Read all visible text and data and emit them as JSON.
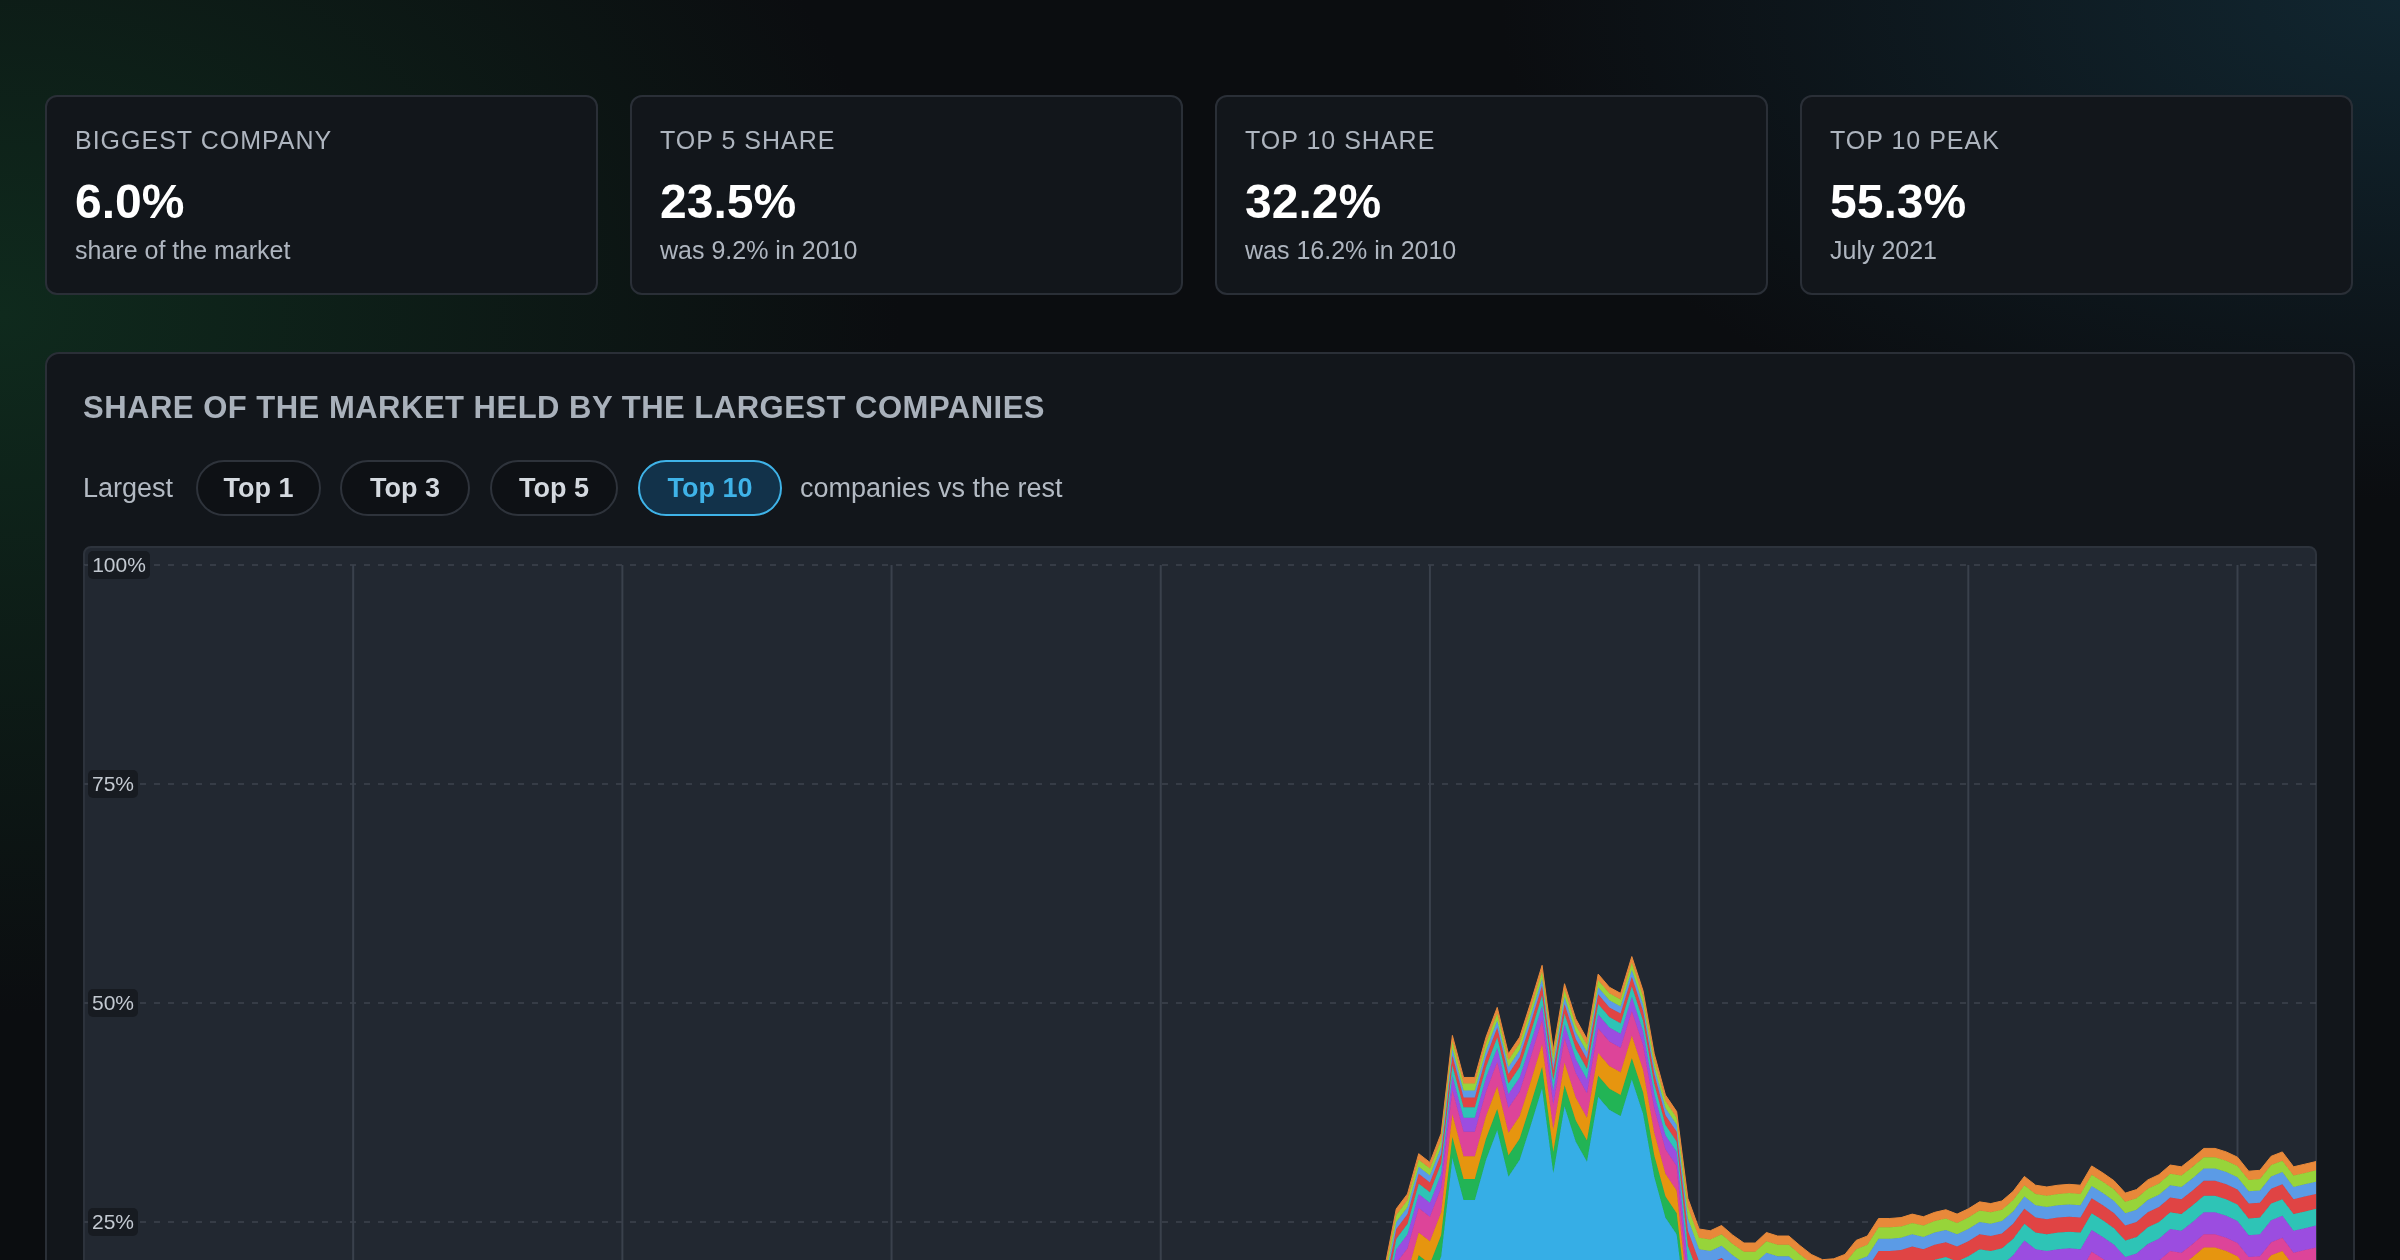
{
  "chart_data": {
    "type": "area",
    "stacked": true,
    "grid": true,
    "title": "SHARE OF THE MARKET HELD BY THE LARGEST COMPANIES",
    "annotations": [
      "BIGGEST COMPANY",
      "6.0%",
      "share of the market",
      "TOP 5 SHARE",
      "23.5%",
      "was 9.2% in 2010",
      "TOP 10 SHARE",
      "32.2%",
      "was 16.2% in 2010",
      "TOP 10 PEAK",
      "55.3%",
      "July 2021",
      "Largest",
      "Top 1",
      "Top 3",
      "Top 5",
      "Top 10",
      "companies vs the rest"
    ],
    "ylim": [
      0,
      100
    ],
    "yticks": [
      {
        "value": 25,
        "label": "25%"
      },
      {
        "value": 50,
        "label": "50%"
      },
      {
        "value": 75,
        "label": "75%"
      },
      {
        "value": 100,
        "label": "100%"
      }
    ],
    "categories": [
      null,
      null,
      null,
      null,
      null,
      null,
      null,
      null,
      null,
      null,
      null,
      null,
      null,
      null,
      null,
      null,
      null,
      null,
      null,
      null,
      null,
      null,
      null,
      null,
      null,
      null,
      null,
      null,
      null,
      null,
      null,
      null,
      null,
      null,
      null,
      null,
      null,
      null,
      null,
      null,
      null,
      null,
      null,
      null,
      null,
      null,
      null,
      null,
      null,
      null,
      null,
      null,
      null,
      null,
      null,
      null,
      null,
      null,
      null,
      null,
      null,
      null,
      null,
      null,
      null,
      null,
      null,
      null,
      null,
      null,
      null,
      null,
      null,
      null,
      null,
      null,
      null,
      null,
      null,
      null,
      null,
      null,
      null,
      null,
      null,
      null,
      null,
      null,
      null,
      null,
      null,
      null,
      null,
      null,
      null,
      null,
      null,
      null,
      null,
      null,
      null,
      null,
      null,
      null,
      null,
      null,
      null,
      null,
      null,
      null,
      null,
      null,
      null,
      null,
      null,
      null,
      null,
      null,
      null,
      null,
      null,
      null,
      null,
      null,
      null,
      null,
      null,
      null,
      null,
      null,
      null,
      null,
      null,
      null,
      null,
      null,
      null,
      null,
      null,
      null,
      null,
      null,
      null,
      null,
      null,
      null,
      null,
      null,
      null,
      null,
      null,
      null,
      null,
      null,
      null,
      null,
      null,
      null,
      null,
      null,
      null,
      null,
      null,
      null,
      null,
      null,
      null,
      null,
      null,
      null,
      null,
      null,
      null,
      null,
      null,
      null,
      null,
      null,
      null,
      null,
      null,
      null,
      null,
      null,
      null,
      null,
      null,
      null,
      null,
      null,
      null,
      null,
      null,
      null,
      null,
      null,
      null,
      null,
      null,
      null
    ],
    "series": [
      {
        "color": "#36aee6",
        "values": [
          null,
          null,
          null,
          null,
          null,
          null,
          null,
          null,
          null,
          null,
          null,
          null,
          null,
          null,
          null,
          null,
          null,
          null,
          null,
          null,
          null,
          null,
          null,
          null,
          null,
          null,
          null,
          null,
          null,
          null,
          null,
          null,
          null,
          null,
          null,
          null,
          null,
          null,
          null,
          null,
          null,
          null,
          null,
          null,
          null,
          null,
          null,
          null,
          null,
          null,
          null,
          null,
          null,
          null,
          null,
          null,
          null,
          null,
          null,
          null,
          null,
          null,
          null,
          null,
          null,
          null,
          null,
          null,
          null,
          null,
          null,
          null,
          null,
          null,
          null,
          null,
          null,
          null,
          null,
          null,
          null,
          null,
          null,
          null,
          null,
          null,
          null,
          null,
          null,
          null,
          null,
          null,
          null,
          null,
          null,
          null,
          null,
          null,
          null,
          null,
          null,
          null,
          null,
          null,
          null,
          null,
          null,
          null,
          null,
          null,
          null,
          null,
          null,
          null,
          null,
          null,
          6,
          12.5,
          14.2,
          18.8,
          17.8,
          21.1,
          32.3,
          27.5,
          27.5,
          32.1,
          35.5,
          30.2,
          32.1,
          36.1,
          40.3,
          30.6,
          38.2,
          34.2,
          31.9,
          39.3,
          37.8,
          37.1,
          41.3,
          37.4,
          30.2,
          25.5,
          23.6,
          13.4,
          9.9,
          9.7,
          10.3,
          9.2,
          8.3,
          8.3,
          9.5,
          9.1,
          9.1,
          8.0,
          7.0,
          6.4,
          6.5,
          7.0,
          8.6,
          9.1,
          11.1,
          11.1,
          11.2,
          11.6,
          11.3,
          11.8,
          12.1,
          11.6,
          12.2,
          13.0,
          12.8,
          13.1,
          14.2,
          15.9,
          14.9,
          14.7,
          14.9,
          15.0,
          14.9,
          17.1,
          16.3,
          15.4,
          14.0,
          14.4,
          15.5,
          16.1,
          17.2,
          17.0,
          18.0,
          19.1,
          19.1,
          18.7,
          18.1,
          16.5,
          16.6,
          18.2,
          18.7,
          17.0,
          17.3,
          17.6
        ]
      },
      {
        "color": "#22b455",
        "values": [
          null,
          null,
          null,
          null,
          null,
          null,
          null,
          null,
          null,
          null,
          null,
          null,
          null,
          null,
          null,
          null,
          null,
          null,
          null,
          null,
          null,
          null,
          null,
          null,
          null,
          null,
          null,
          null,
          null,
          null,
          null,
          null,
          null,
          null,
          null,
          null,
          null,
          null,
          null,
          null,
          null,
          null,
          null,
          null,
          null,
          null,
          null,
          null,
          null,
          null,
          null,
          null,
          null,
          null,
          null,
          null,
          null,
          null,
          null,
          null,
          null,
          null,
          null,
          null,
          null,
          null,
          null,
          null,
          null,
          null,
          null,
          null,
          null,
          null,
          null,
          null,
          null,
          null,
          null,
          null,
          null,
          null,
          null,
          null,
          null,
          null,
          null,
          null,
          null,
          null,
          null,
          null,
          null,
          null,
          null,
          null,
          null,
          null,
          null,
          null,
          null,
          null,
          null,
          null,
          null,
          null,
          null,
          null,
          null,
          null,
          null,
          null,
          null,
          null,
          null,
          null,
          2.4,
          2.4,
          2.4,
          2.4,
          2.4,
          2.4,
          2.4,
          2.4,
          2.4,
          2.4,
          2.4,
          2.4,
          2.4,
          2.4,
          2.4,
          2.4,
          2.4,
          2.4,
          2.4,
          2.4,
          2.4,
          2.4,
          2.4,
          2.4,
          2.4,
          2.4,
          2.4,
          1.5,
          1.5,
          1.5,
          1.5,
          1.5,
          1.5,
          1.5,
          1.5,
          1.5,
          1.5,
          1.5,
          1.5,
          1.5,
          1.5,
          1.5,
          1.5,
          1.5,
          1.5,
          1.5,
          1.5,
          1.5,
          1.5,
          1.5,
          1.5,
          1.5,
          1.5,
          1.5,
          1.5,
          1.5,
          1.5,
          1.5,
          1.5,
          1.5,
          1.5,
          1.5,
          1.5,
          1.5,
          1.5,
          1.5,
          1.5,
          1.5,
          1.5,
          1.5,
          1.5,
          1.5,
          1.5,
          1.5,
          1.5,
          1.5,
          1.5,
          1.5,
          1.5,
          1.5,
          1.5,
          1.5,
          1.5,
          1.5
        ]
      },
      {
        "color": "#e6950f",
        "values": [
          null,
          null,
          null,
          null,
          null,
          null,
          null,
          null,
          null,
          null,
          null,
          null,
          null,
          null,
          null,
          null,
          null,
          null,
          null,
          null,
          null,
          null,
          null,
          null,
          null,
          null,
          null,
          null,
          null,
          null,
          null,
          null,
          null,
          null,
          null,
          null,
          null,
          null,
          null,
          null,
          null,
          null,
          null,
          null,
          null,
          null,
          null,
          null,
          null,
          null,
          null,
          null,
          null,
          null,
          null,
          null,
          null,
          null,
          null,
          null,
          null,
          null,
          null,
          null,
          null,
          null,
          null,
          null,
          null,
          null,
          null,
          null,
          null,
          null,
          null,
          null,
          null,
          null,
          null,
          null,
          null,
          null,
          null,
          null,
          null,
          null,
          null,
          null,
          null,
          null,
          null,
          null,
          null,
          null,
          null,
          null,
          null,
          null,
          null,
          null,
          null,
          null,
          null,
          null,
          null,
          null,
          null,
          null,
          null,
          null,
          null,
          null,
          null,
          null,
          null,
          null,
          2.6,
          2.6,
          2.6,
          2.6,
          2.6,
          2.6,
          2.6,
          2.6,
          2.6,
          2.6,
          2.6,
          2.6,
          2.6,
          2.6,
          2.6,
          2.6,
          2.6,
          2.6,
          2.6,
          2.6,
          2.6,
          2.6,
          2.6,
          2.6,
          2.6,
          2.6,
          2.6,
          1.5,
          1.5,
          1.5,
          1.5,
          1.5,
          1.5,
          1.5,
          1.5,
          1.5,
          1.5,
          1.5,
          1.5,
          1.5,
          1.5,
          1.5,
          1.5,
          1.5,
          1.5,
          1.5,
          1.5,
          1.5,
          1.5,
          1.5,
          1.5,
          1.5,
          1.5,
          1.5,
          1.5,
          1.5,
          1.5,
          1.5,
          1.5,
          1.5,
          1.5,
          1.5,
          1.5,
          1.5,
          1.5,
          1.5,
          1.5,
          1.5,
          1.5,
          1.5,
          1.5,
          1.5,
          1.5,
          1.5,
          1.5,
          1.5,
          1.5,
          1.5,
          1.5,
          1.5,
          1.5,
          1.5,
          1.5,
          1.5
        ]
      },
      {
        "color": "#dd4499",
        "values": [
          null,
          null,
          null,
          null,
          null,
          null,
          null,
          null,
          null,
          null,
          null,
          null,
          null,
          null,
          null,
          null,
          null,
          null,
          null,
          null,
          null,
          null,
          null,
          null,
          null,
          null,
          null,
          null,
          null,
          null,
          null,
          null,
          null,
          null,
          null,
          null,
          null,
          null,
          null,
          null,
          null,
          null,
          null,
          null,
          null,
          null,
          null,
          null,
          null,
          null,
          null,
          null,
          null,
          null,
          null,
          null,
          null,
          null,
          null,
          null,
          null,
          null,
          null,
          null,
          null,
          null,
          null,
          null,
          null,
          null,
          null,
          null,
          null,
          null,
          null,
          null,
          null,
          null,
          null,
          null,
          null,
          null,
          null,
          null,
          null,
          null,
          null,
          null,
          null,
          null,
          null,
          null,
          null,
          null,
          null,
          null,
          null,
          null,
          null,
          null,
          null,
          null,
          null,
          null,
          null,
          null,
          null,
          null,
          null,
          null,
          null,
          null,
          null,
          null,
          null,
          null,
          2.8,
          2.8,
          2.8,
          2.8,
          2.8,
          2.8,
          2.8,
          2.8,
          2.8,
          2.8,
          2.8,
          2.8,
          2.8,
          2.8,
          2.8,
          2.8,
          2.8,
          2.8,
          2.8,
          2.8,
          2.8,
          2.8,
          2.8,
          2.8,
          2.8,
          2.8,
          2.8,
          1.5,
          1.5,
          1.5,
          1.5,
          1.5,
          1.5,
          1.5,
          1.5,
          1.5,
          1.5,
          1.5,
          1.5,
          1.5,
          1.5,
          1.5,
          1.5,
          1.5,
          1.5,
          1.5,
          1.5,
          1.5,
          1.5,
          1.5,
          1.5,
          1.5,
          1.5,
          1.5,
          1.5,
          1.5,
          1.5,
          1.5,
          1.5,
          1.5,
          1.5,
          1.5,
          1.5,
          1.5,
          1.5,
          1.5,
          1.5,
          1.5,
          1.5,
          1.5,
          1.5,
          1.5,
          1.5,
          1.5,
          1.5,
          1.5,
          1.5,
          1.5,
          1.5,
          1.5,
          1.5,
          1.5,
          1.5,
          1.5
        ]
      },
      {
        "color": "#9b4de0",
        "values": [
          null,
          null,
          null,
          null,
          null,
          null,
          null,
          null,
          null,
          null,
          null,
          null,
          null,
          null,
          null,
          null,
          null,
          null,
          null,
          null,
          null,
          null,
          null,
          null,
          null,
          null,
          null,
          null,
          null,
          null,
          null,
          null,
          null,
          null,
          null,
          null,
          null,
          null,
          null,
          null,
          null,
          null,
          null,
          null,
          null,
          null,
          null,
          null,
          null,
          null,
          null,
          null,
          null,
          null,
          null,
          null,
          null,
          null,
          null,
          null,
          null,
          null,
          null,
          null,
          null,
          null,
          null,
          null,
          null,
          null,
          null,
          null,
          null,
          null,
          null,
          null,
          null,
          null,
          null,
          null,
          null,
          null,
          null,
          null,
          null,
          null,
          null,
          null,
          null,
          null,
          null,
          null,
          null,
          null,
          null,
          null,
          null,
          null,
          null,
          null,
          null,
          null,
          null,
          null,
          null,
          null,
          null,
          null,
          null,
          null,
          null,
          null,
          null,
          null,
          null,
          null,
          1.6,
          1.6,
          1.6,
          1.6,
          1.6,
          1.6,
          1.6,
          1.6,
          1.6,
          1.6,
          1.6,
          1.6,
          1.6,
          1.6,
          1.6,
          1.6,
          1.6,
          1.6,
          1.6,
          1.6,
          1.6,
          1.6,
          1.6,
          1.6,
          1.6,
          1.6,
          1.6,
          2.5,
          2.5,
          2.5,
          2.5,
          2.5,
          2.5,
          2.5,
          2.5,
          2.5,
          2.5,
          2.5,
          2.5,
          2.5,
          2.5,
          2.5,
          2.5,
          2.5,
          2.5,
          2.5,
          2.5,
          2.5,
          2.5,
          2.5,
          2.5,
          2.5,
          2.5,
          2.5,
          2.5,
          2.5,
          2.5,
          2.5,
          2.5,
          2.5,
          2.5,
          2.5,
          2.5,
          2.5,
          2.5,
          2.5,
          2.5,
          2.5,
          2.5,
          2.5,
          2.5,
          2.5,
          2.5,
          2.5,
          2.5,
          2.5,
          2.5,
          2.5,
          2.5,
          2.5,
          2.5,
          2.5,
          2.5,
          2.5
        ]
      },
      {
        "color": "#2ec4b6",
        "values": [
          null,
          null,
          null,
          null,
          null,
          null,
          null,
          null,
          null,
          null,
          null,
          null,
          null,
          null,
          null,
          null,
          null,
          null,
          null,
          null,
          null,
          null,
          null,
          null,
          null,
          null,
          null,
          null,
          null,
          null,
          null,
          null,
          null,
          null,
          null,
          null,
          null,
          null,
          null,
          null,
          null,
          null,
          null,
          null,
          null,
          null,
          null,
          null,
          null,
          null,
          null,
          null,
          null,
          null,
          null,
          null,
          null,
          null,
          null,
          null,
          null,
          null,
          null,
          null,
          null,
          null,
          null,
          null,
          null,
          null,
          null,
          null,
          null,
          null,
          null,
          null,
          null,
          null,
          null,
          null,
          null,
          null,
          null,
          null,
          null,
          null,
          null,
          null,
          null,
          null,
          null,
          null,
          null,
          null,
          null,
          null,
          null,
          null,
          null,
          null,
          null,
          null,
          null,
          null,
          null,
          null,
          null,
          null,
          null,
          null,
          null,
          null,
          null,
          null,
          null,
          null,
          1.2,
          1.2,
          1.2,
          1.2,
          1.2,
          1.2,
          1.2,
          1.2,
          1.2,
          1.2,
          1.2,
          1.2,
          1.2,
          1.2,
          1.2,
          1.2,
          1.2,
          1.2,
          1.2,
          1.2,
          1.2,
          1.2,
          1.2,
          1.2,
          1.2,
          1.2,
          1.2,
          1.9,
          1.9,
          1.9,
          1.9,
          1.9,
          1.9,
          1.9,
          1.9,
          1.9,
          1.9,
          1.9,
          1.9,
          1.9,
          1.9,
          1.9,
          1.9,
          1.9,
          1.9,
          1.9,
          1.9,
          1.9,
          1.9,
          1.9,
          1.9,
          1.9,
          1.9,
          1.9,
          1.9,
          1.9,
          1.9,
          1.9,
          1.9,
          1.9,
          1.9,
          1.9,
          1.9,
          1.9,
          1.9,
          1.9,
          1.9,
          1.9,
          1.9,
          1.9,
          1.9,
          1.9,
          1.9,
          1.9,
          1.9,
          1.9,
          1.9,
          1.9,
          1.9,
          1.9,
          1.9,
          1.9,
          1.9,
          1.9
        ]
      },
      {
        "color": "#e04444",
        "values": [
          null,
          null,
          null,
          null,
          null,
          null,
          null,
          null,
          null,
          null,
          null,
          null,
          null,
          null,
          null,
          null,
          null,
          null,
          null,
          null,
          null,
          null,
          null,
          null,
          null,
          null,
          null,
          null,
          null,
          null,
          null,
          null,
          null,
          null,
          null,
          null,
          null,
          null,
          null,
          null,
          null,
          null,
          null,
          null,
          null,
          null,
          null,
          null,
          null,
          null,
          null,
          null,
          null,
          null,
          null,
          null,
          null,
          null,
          null,
          null,
          null,
          null,
          null,
          null,
          null,
          null,
          null,
          null,
          null,
          null,
          null,
          null,
          null,
          null,
          null,
          null,
          null,
          null,
          null,
          null,
          null,
          null,
          null,
          null,
          null,
          null,
          null,
          null,
          null,
          null,
          null,
          null,
          null,
          null,
          null,
          null,
          null,
          null,
          null,
          null,
          null,
          null,
          null,
          null,
          null,
          null,
          null,
          null,
          null,
          null,
          null,
          null,
          null,
          null,
          null,
          null,
          1.1,
          1.1,
          1.1,
          1.1,
          1.1,
          1.1,
          1.1,
          1.1,
          1.1,
          1.1,
          1.1,
          1.1,
          1.1,
          1.1,
          1.1,
          1.1,
          1.1,
          1.1,
          1.1,
          1.1,
          1.1,
          1.1,
          1.1,
          1.1,
          1.1,
          1.1,
          1.1,
          1.7,
          1.7,
          1.7,
          1.7,
          1.7,
          1.7,
          1.7,
          1.7,
          1.7,
          1.7,
          1.7,
          1.7,
          1.7,
          1.7,
          1.7,
          1.7,
          1.7,
          1.7,
          1.7,
          1.7,
          1.7,
          1.7,
          1.7,
          1.7,
          1.7,
          1.7,
          1.7,
          1.7,
          1.7,
          1.7,
          1.7,
          1.7,
          1.7,
          1.7,
          1.7,
          1.7,
          1.7,
          1.7,
          1.7,
          1.7,
          1.7,
          1.7,
          1.7,
          1.7,
          1.7,
          1.7,
          1.7,
          1.7,
          1.7,
          1.7,
          1.7,
          1.7,
          1.7,
          1.7,
          1.7,
          1.7,
          1.7
        ]
      },
      {
        "color": "#5b9be6",
        "values": [
          null,
          null,
          null,
          null,
          null,
          null,
          null,
          null,
          null,
          null,
          null,
          null,
          null,
          null,
          null,
          null,
          null,
          null,
          null,
          null,
          null,
          null,
          null,
          null,
          null,
          null,
          null,
          null,
          null,
          null,
          null,
          null,
          null,
          null,
          null,
          null,
          null,
          null,
          null,
          null,
          null,
          null,
          null,
          null,
          null,
          null,
          null,
          null,
          null,
          null,
          null,
          null,
          null,
          null,
          null,
          null,
          null,
          null,
          null,
          null,
          null,
          null,
          null,
          null,
          null,
          null,
          null,
          null,
          null,
          null,
          null,
          null,
          null,
          null,
          null,
          null,
          null,
          null,
          null,
          null,
          null,
          null,
          null,
          null,
          null,
          null,
          null,
          null,
          null,
          null,
          null,
          null,
          null,
          null,
          null,
          null,
          null,
          null,
          null,
          null,
          null,
          null,
          null,
          null,
          null,
          null,
          null,
          null,
          null,
          null,
          null,
          null,
          null,
          null,
          null,
          null,
          0.8,
          0.8,
          0.8,
          0.8,
          0.8,
          0.8,
          0.8,
          0.8,
          0.8,
          0.8,
          0.8,
          0.8,
          0.8,
          0.8,
          0.8,
          0.8,
          0.8,
          0.8,
          0.8,
          0.8,
          0.8,
          0.8,
          0.8,
          0.8,
          0.8,
          0.8,
          0.8,
          1.4,
          1.4,
          1.4,
          1.4,
          1.4,
          1.4,
          1.4,
          1.4,
          1.4,
          1.4,
          1.4,
          1.4,
          1.4,
          1.4,
          1.4,
          1.4,
          1.4,
          1.4,
          1.4,
          1.4,
          1.4,
          1.4,
          1.4,
          1.4,
          1.4,
          1.4,
          1.4,
          1.4,
          1.4,
          1.4,
          1.4,
          1.4,
          1.4,
          1.4,
          1.4,
          1.4,
          1.4,
          1.4,
          1.4,
          1.4,
          1.4,
          1.4,
          1.4,
          1.4,
          1.4,
          1.4,
          1.4,
          1.4,
          1.4,
          1.4,
          1.4,
          1.4,
          1.4,
          1.4,
          1.4,
          1.4,
          1.4
        ]
      },
      {
        "color": "#97d43a",
        "values": [
          null,
          null,
          null,
          null,
          null,
          null,
          null,
          null,
          null,
          null,
          null,
          null,
          null,
          null,
          null,
          null,
          null,
          null,
          null,
          null,
          null,
          null,
          null,
          null,
          null,
          null,
          null,
          null,
          null,
          null,
          null,
          null,
          null,
          null,
          null,
          null,
          null,
          null,
          null,
          null,
          null,
          null,
          null,
          null,
          null,
          null,
          null,
          null,
          null,
          null,
          null,
          null,
          null,
          null,
          null,
          null,
          null,
          null,
          null,
          null,
          null,
          null,
          null,
          null,
          null,
          null,
          null,
          null,
          null,
          null,
          null,
          null,
          null,
          null,
          null,
          null,
          null,
          null,
          null,
          null,
          null,
          null,
          null,
          null,
          null,
          null,
          null,
          null,
          null,
          null,
          null,
          null,
          null,
          null,
          null,
          null,
          null,
          null,
          null,
          null,
          null,
          null,
          null,
          null,
          null,
          null,
          null,
          null,
          null,
          null,
          null,
          null,
          null,
          null,
          null,
          null,
          0.8,
          0.8,
          0.8,
          0.8,
          0.8,
          0.8,
          0.8,
          0.8,
          0.8,
          0.8,
          0.8,
          0.8,
          0.8,
          0.8,
          0.8,
          0.8,
          0.8,
          0.8,
          0.8,
          0.8,
          0.8,
          0.8,
          0.8,
          0.8,
          0.8,
          0.8,
          0.8,
          1.3,
          1.3,
          1.3,
          1.3,
          1.3,
          1.3,
          1.3,
          1.3,
          1.3,
          1.3,
          1.3,
          1.3,
          1.3,
          1.3,
          1.3,
          1.3,
          1.3,
          1.3,
          1.3,
          1.3,
          1.3,
          1.3,
          1.3,
          1.3,
          1.3,
          1.3,
          1.3,
          1.3,
          1.3,
          1.3,
          1.3,
          1.3,
          1.3,
          1.3,
          1.3,
          1.3,
          1.3,
          1.3,
          1.3,
          1.3,
          1.3,
          1.3,
          1.3,
          1.3,
          1.3,
          1.3,
          1.3,
          1.3,
          1.3,
          1.3,
          1.3,
          1.3,
          1.3,
          1.3,
          1.3,
          1.3,
          1.3
        ]
      },
      {
        "color": "#e8893a",
        "values": [
          null,
          null,
          null,
          null,
          null,
          null,
          null,
          null,
          null,
          null,
          null,
          null,
          null,
          null,
          null,
          null,
          null,
          null,
          null,
          null,
          null,
          null,
          null,
          null,
          null,
          null,
          null,
          null,
          null,
          null,
          null,
          null,
          null,
          null,
          null,
          null,
          null,
          null,
          null,
          null,
          null,
          null,
          null,
          null,
          null,
          null,
          null,
          null,
          null,
          null,
          null,
          null,
          null,
          null,
          null,
          null,
          null,
          null,
          null,
          null,
          null,
          null,
          null,
          null,
          null,
          null,
          null,
          null,
          null,
          null,
          null,
          null,
          null,
          null,
          null,
          null,
          null,
          null,
          null,
          null,
          null,
          null,
          null,
          null,
          null,
          null,
          null,
          null,
          null,
          null,
          null,
          null,
          null,
          null,
          null,
          null,
          null,
          null,
          null,
          null,
          null,
          null,
          null,
          null,
          null,
          null,
          null,
          null,
          null,
          null,
          null,
          null,
          null,
          null,
          null,
          null,
          0.7,
          0.7,
          0.7,
          0.7,
          0.7,
          0.7,
          0.7,
          0.7,
          0.7,
          0.7,
          0.7,
          0.7,
          0.7,
          0.7,
          0.7,
          0.7,
          0.7,
          0.7,
          0.7,
          0.7,
          0.7,
          0.7,
          0.7,
          0.7,
          0.7,
          0.7,
          0.7,
          1.0,
          1.0,
          1.0,
          1.0,
          1.0,
          1.0,
          1.0,
          1.0,
          1.0,
          1.0,
          1.0,
          1.0,
          1.0,
          1.0,
          1.0,
          1.0,
          1.0,
          1.0,
          1.0,
          1.0,
          1.0,
          1.0,
          1.0,
          1.0,
          1.0,
          1.0,
          1.0,
          1.0,
          1.0,
          1.0,
          1.0,
          1.0,
          1.0,
          1.0,
          1.0,
          1.0,
          1.0,
          1.0,
          1.0,
          1.0,
          1.0,
          1.0,
          1.0,
          1.0,
          1.0,
          1.0,
          1.0,
          1.0,
          1.0,
          1.0,
          1.0,
          1.0,
          1.0,
          1.0,
          1.0,
          1.0,
          1.0
        ]
      }
    ]
  }
}
